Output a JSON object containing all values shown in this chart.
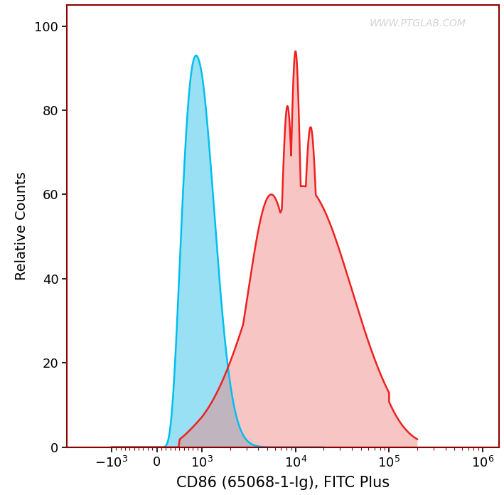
{
  "title": "",
  "xlabel": "CD86 (65068-1-Ig), FITC Plus",
  "ylabel": "Relative Counts",
  "watermark": "WWW.PTGLAB.COM",
  "ylim": [
    0,
    105
  ],
  "yticks": [
    0,
    20,
    40,
    60,
    80,
    100
  ],
  "blue_color": "#00BFEF",
  "blue_fill": "#55CCEE",
  "red_color": "#EE2020",
  "red_fill": "#F08080",
  "background_color": "#ffffff",
  "axis_color": "#8B0000",
  "xlabel_fontsize": 15,
  "ylabel_fontsize": 14,
  "tick_fontsize": 13,
  "xlim_left": -3000,
  "xlim_right": 1500000,
  "symlog_linthresh": 1000,
  "symlog_linscale": 0.435
}
